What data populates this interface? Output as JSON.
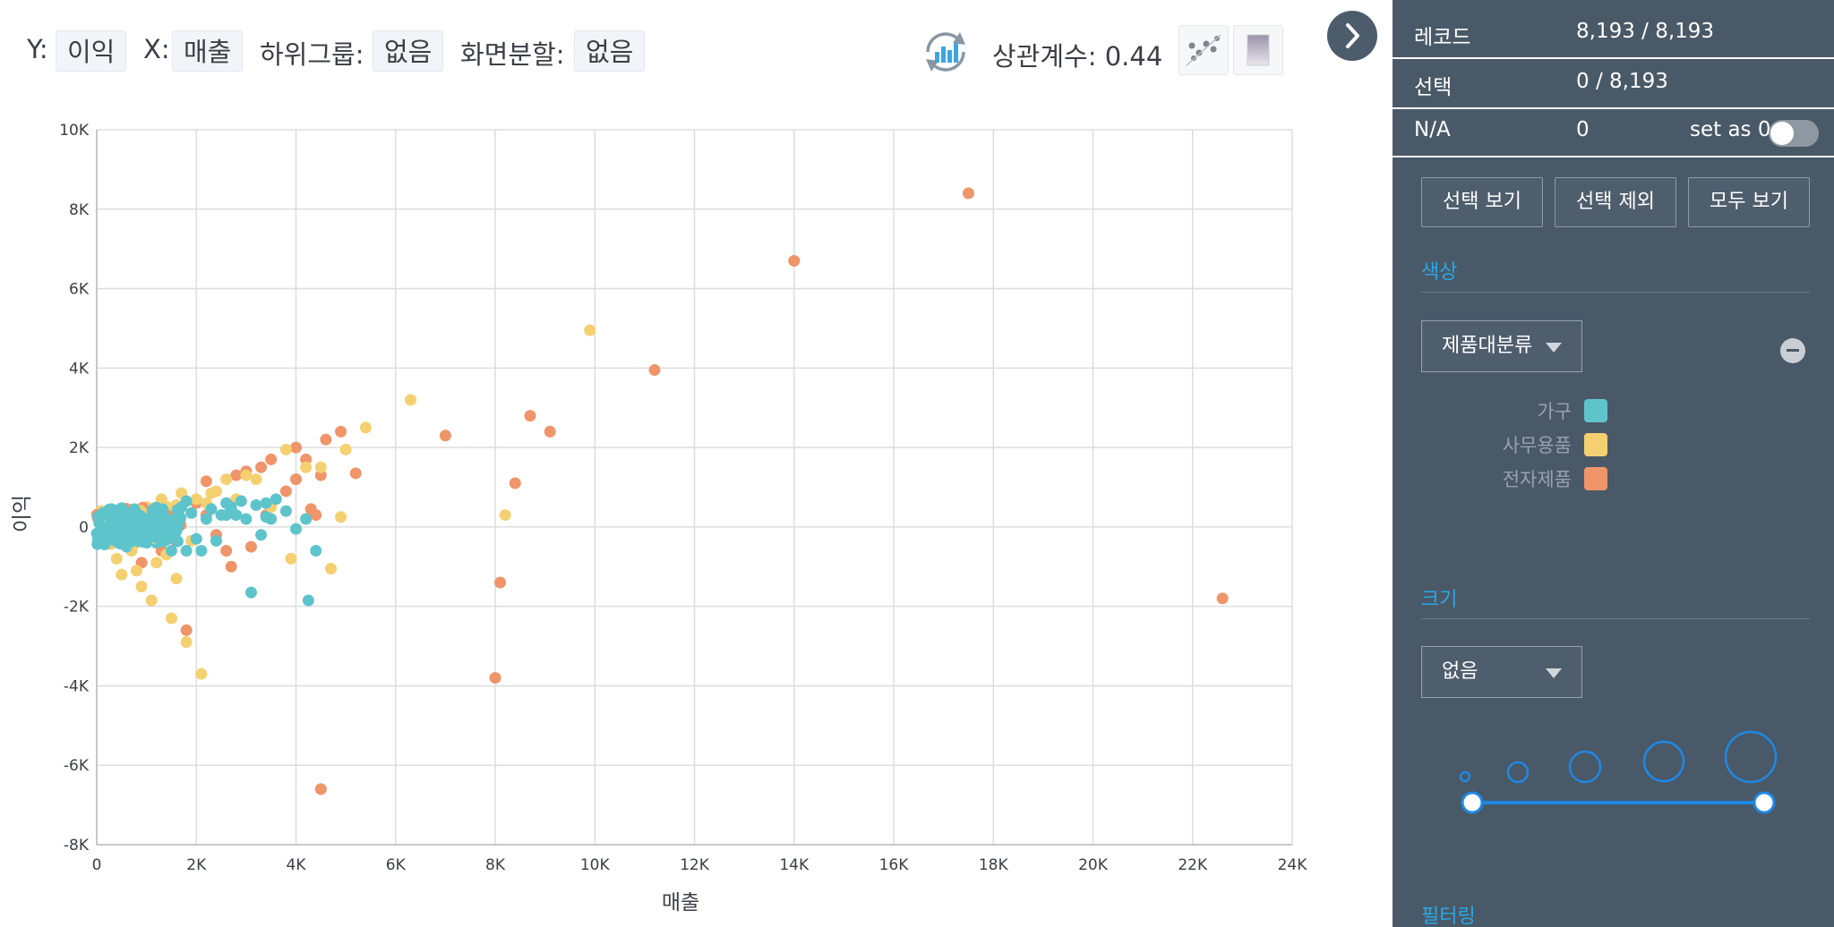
{
  "toolbar": {
    "y_label": "Y:",
    "y_value": "이익",
    "x_label": "X:",
    "x_value": "매출",
    "subgroup_label": "하위그룹:",
    "subgroup_value": "없음",
    "split_label": "화면분할:",
    "split_value": "없음",
    "correlation_text": "상관계수: 0.44"
  },
  "panel": {
    "records_label": "레코드",
    "records_value": "8,193 / 8,193",
    "selected_label": "선택",
    "selected_value": "0 / 8,193",
    "na_label": "N/A",
    "na_value": "0",
    "set_as_zero": "set as 0",
    "buttons": [
      "선택 보기",
      "선택 제외",
      "모두 보기"
    ],
    "color_section": "색상",
    "color_dropdown": "제품대분류",
    "legend": [
      {
        "label": "가구",
        "color": "#5ec4cc"
      },
      {
        "label": "사무용품",
        "color": "#f4d071"
      },
      {
        "label": "전자제품",
        "color": "#f0946a"
      }
    ],
    "size_section": "크기",
    "size_dropdown": "없음",
    "filter_section": "필터링"
  },
  "colors": {
    "accent": "#29a8e8",
    "panel_bg": "#4a5968",
    "furniture": "#5ec4cc",
    "office": "#f4d071",
    "electronics": "#f0946a"
  },
  "chart_data": {
    "type": "scatter",
    "xlabel": "매출",
    "ylabel": "이익",
    "xlim": [
      0,
      24000
    ],
    "ylim": [
      -8000,
      10000
    ],
    "x_ticks": [
      "0",
      "2K",
      "4K",
      "6K",
      "8K",
      "10K",
      "12K",
      "14K",
      "16K",
      "18K",
      "20K",
      "22K",
      "24K"
    ],
    "y_ticks": [
      "-8K",
      "-6K",
      "-4K",
      "-2K",
      "0",
      "2K",
      "4K",
      "6K",
      "8K",
      "10K"
    ],
    "grid": true,
    "series": [
      {
        "name": "가구",
        "color": "#5ec4cc",
        "points": [
          [
            100,
            20
          ],
          [
            200,
            -50
          ],
          [
            300,
            80
          ],
          [
            400,
            -120
          ],
          [
            500,
            150
          ],
          [
            600,
            -200
          ],
          [
            700,
            100
          ],
          [
            800,
            -300
          ],
          [
            900,
            250
          ],
          [
            1000,
            -150
          ],
          [
            1100,
            200
          ],
          [
            1200,
            -400
          ],
          [
            1300,
            300
          ],
          [
            1400,
            -250
          ],
          [
            1500,
            400
          ],
          [
            1600,
            -100
          ],
          [
            1700,
            500
          ],
          [
            1800,
            -600
          ],
          [
            1900,
            350
          ],
          [
            2000,
            -300
          ],
          [
            2100,
            -600
          ],
          [
            2200,
            200
          ],
          [
            2300,
            450
          ],
          [
            2400,
            -350
          ],
          [
            2500,
            300
          ],
          [
            2600,
            600
          ],
          [
            2700,
            500
          ],
          [
            2800,
            300
          ],
          [
            2900,
            650
          ],
          [
            3000,
            200
          ],
          [
            3100,
            -1650
          ],
          [
            3200,
            550
          ],
          [
            3300,
            -200
          ],
          [
            3400,
            600
          ],
          [
            3500,
            200
          ],
          [
            3600,
            700
          ],
          [
            3800,
            400
          ],
          [
            4000,
            -50
          ],
          [
            4200,
            200
          ],
          [
            4250,
            -1850
          ],
          [
            4400,
            -600
          ],
          [
            1500,
            -600
          ],
          [
            1000,
            -300
          ],
          [
            600,
            -500
          ],
          [
            1200,
            250
          ],
          [
            1800,
            650
          ],
          [
            400,
            50
          ],
          [
            2600,
            300
          ],
          [
            3400,
            250
          ],
          [
            700,
            300
          ]
        ]
      },
      {
        "name": "사무용품",
        "color": "#f4d071",
        "points": [
          [
            200,
            100
          ],
          [
            300,
            -400
          ],
          [
            400,
            -800
          ],
          [
            500,
            -1200
          ],
          [
            600,
            400
          ],
          [
            700,
            -600
          ],
          [
            800,
            -1100
          ],
          [
            900,
            -1500
          ],
          [
            1000,
            500
          ],
          [
            1100,
            -1850
          ],
          [
            1200,
            -900
          ],
          [
            1300,
            700
          ],
          [
            1400,
            -700
          ],
          [
            1500,
            -2300
          ],
          [
            1600,
            -1300
          ],
          [
            1700,
            850
          ],
          [
            1800,
            -2900
          ],
          [
            1900,
            -350
          ],
          [
            2000,
            700
          ],
          [
            2100,
            -3700
          ],
          [
            2200,
            600
          ],
          [
            2300,
            850
          ],
          [
            2400,
            900
          ],
          [
            2600,
            1200
          ],
          [
            2800,
            700
          ],
          [
            3000,
            1300
          ],
          [
            3200,
            1200
          ],
          [
            3500,
            500
          ],
          [
            3800,
            1950
          ],
          [
            3900,
            -800
          ],
          [
            4200,
            1500
          ],
          [
            4500,
            1500
          ],
          [
            4700,
            -1050
          ],
          [
            4900,
            250
          ],
          [
            5000,
            1950
          ],
          [
            5400,
            2500
          ],
          [
            6300,
            3200
          ],
          [
            8200,
            300
          ],
          [
            9900,
            4950
          ],
          [
            1600,
            550
          ],
          [
            1200,
            350
          ],
          [
            800,
            200
          ],
          [
            2700,
            350
          ]
        ]
      },
      {
        "name": "전자제품",
        "color": "#f0946a",
        "points": [
          [
            100,
            50
          ],
          [
            300,
            150
          ],
          [
            500,
            200
          ],
          [
            700,
            300
          ],
          [
            900,
            -900
          ],
          [
            1100,
            350
          ],
          [
            1300,
            -600
          ],
          [
            1500,
            400
          ],
          [
            1700,
            500
          ],
          [
            1800,
            -2600
          ],
          [
            2000,
            600
          ],
          [
            2200,
            1150
          ],
          [
            2400,
            -200
          ],
          [
            2600,
            -600
          ],
          [
            2700,
            -1000
          ],
          [
            2800,
            1300
          ],
          [
            3000,
            1400
          ],
          [
            3100,
            -500
          ],
          [
            3300,
            1500
          ],
          [
            3500,
            1700
          ],
          [
            3800,
            900
          ],
          [
            4000,
            2000
          ],
          [
            4000,
            1200
          ],
          [
            4200,
            1700
          ],
          [
            4400,
            300
          ],
          [
            4500,
            1300
          ],
          [
            4500,
            -6600
          ],
          [
            4600,
            2200
          ],
          [
            4900,
            2400
          ],
          [
            5200,
            1350
          ],
          [
            7000,
            2300
          ],
          [
            8000,
            -3800
          ],
          [
            8100,
            -1400
          ],
          [
            8400,
            1100
          ],
          [
            8700,
            2800
          ],
          [
            9100,
            2400
          ],
          [
            11200,
            3950
          ],
          [
            14000,
            6700
          ],
          [
            17500,
            8400
          ],
          [
            22600,
            -1800
          ],
          [
            4300,
            450
          ],
          [
            3400,
            300
          ],
          [
            2200,
            300
          ]
        ]
      }
    ]
  }
}
